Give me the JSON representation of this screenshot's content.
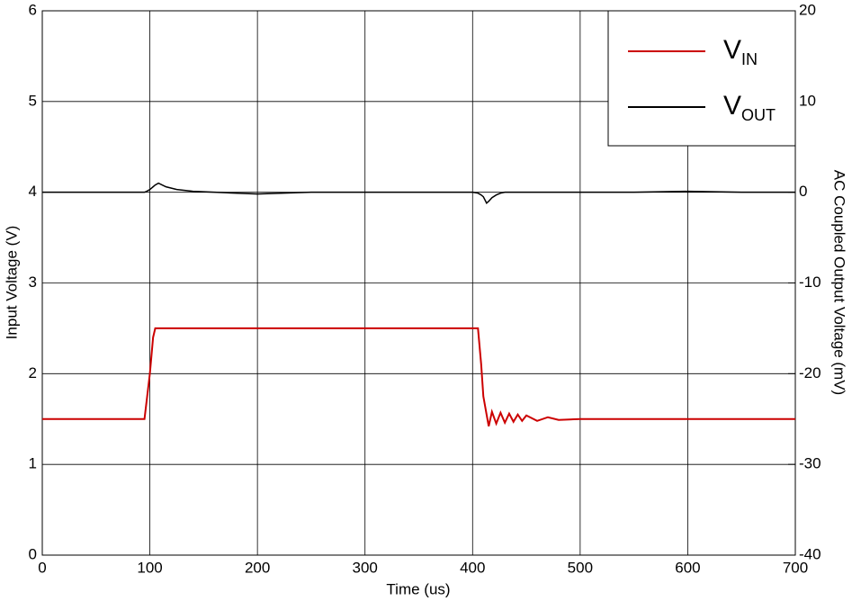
{
  "chart_data": {
    "type": "line",
    "xlabel": "Time (us)",
    "ylabel": "Input Voltage (V)",
    "y2label": "AC Coupled Output Voltage (mV)",
    "x": [
      0,
      20,
      40,
      60,
      80,
      95,
      97,
      100,
      103,
      105,
      108,
      115,
      125,
      140,
      160,
      200,
      250,
      300,
      350,
      400,
      405,
      408,
      410,
      413,
      415,
      418,
      422,
      426,
      430,
      434,
      438,
      442,
      446,
      450,
      460,
      470,
      480,
      500,
      550,
      600,
      650,
      700
    ],
    "series": [
      {
        "name": "VIN",
        "color": "#cc0000",
        "axis": "y",
        "values": [
          1.5,
          1.5,
          1.5,
          1.5,
          1.5,
          1.5,
          1.7,
          2.0,
          2.4,
          2.5,
          2.5,
          2.5,
          2.5,
          2.5,
          2.5,
          2.5,
          2.5,
          2.5,
          2.5,
          2.5,
          2.5,
          2.1,
          1.75,
          1.55,
          1.42,
          1.58,
          1.45,
          1.57,
          1.46,
          1.56,
          1.47,
          1.55,
          1.48,
          1.54,
          1.48,
          1.52,
          1.49,
          1.5,
          1.5,
          1.5,
          1.5,
          1.5
        ]
      },
      {
        "name": "VOUT",
        "color": "#000000",
        "axis": "y2",
        "values": [
          0,
          0,
          0,
          0,
          0,
          0,
          0.1,
          0.3,
          0.6,
          0.8,
          1.0,
          0.6,
          0.3,
          0.1,
          0,
          -0.2,
          0,
          0,
          0,
          0,
          -0.1,
          -0.3,
          -0.5,
          -1.2,
          -1.0,
          -0.6,
          -0.3,
          -0.1,
          0,
          0,
          0,
          0,
          0,
          0,
          0,
          0,
          0,
          0,
          0,
          0.1,
          0,
          0
        ]
      }
    ],
    "xlim": [
      0,
      700
    ],
    "xticks": [
      0,
      100,
      200,
      300,
      400,
      500,
      600,
      700
    ],
    "ylim": [
      0,
      6
    ],
    "yticks": [
      0,
      1,
      2,
      3,
      4,
      5,
      6
    ],
    "y2lim": [
      -40,
      20
    ],
    "y2ticks": [
      -40,
      -30,
      -20,
      -10,
      0,
      10,
      20
    ],
    "grid": true,
    "legend": "upper right"
  }
}
